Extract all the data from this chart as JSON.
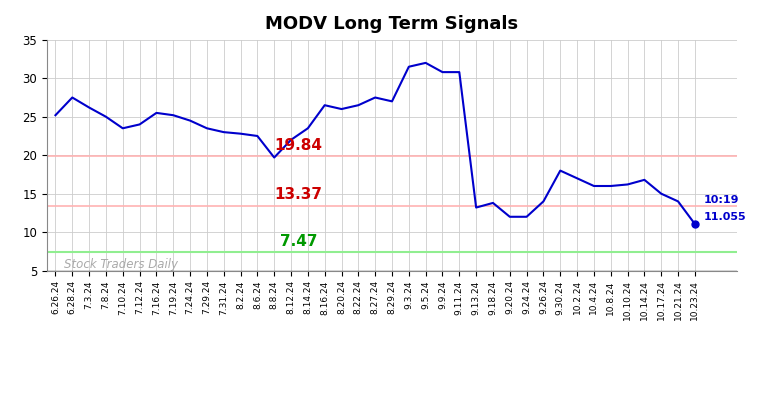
{
  "title": "MODV Long Term Signals",
  "line_color": "#0000cc",
  "hline1_value": 19.84,
  "hline1_color": "#ffb3b3",
  "hline2_value": 13.37,
  "hline2_color": "#ffb3b3",
  "hline3_value": 7.47,
  "hline3_color": "#90ee90",
  "label1_text": "19.84",
  "label1_color": "#cc0000",
  "label2_text": "13.37",
  "label2_color": "#cc0000",
  "label3_text": "7.47",
  "label3_color": "#009900",
  "watermark_text": "Stock Traders Daily",
  "watermark_color": "#aaaaaa",
  "annotation_color": "#0000cc",
  "last_dot_color": "#0000cc",
  "ylim": [
    5,
    35
  ],
  "yticks": [
    5,
    10,
    15,
    20,
    25,
    30,
    35
  ],
  "background_color": "#ffffff",
  "x_dates": [
    "6.26.24",
    "6.28.24",
    "7.3.24",
    "7.8.24",
    "7.10.24",
    "7.12.24",
    "7.16.24",
    "7.19.24",
    "7.24.24",
    "7.29.24",
    "7.31.24",
    "8.2.24",
    "8.6.24",
    "8.8.24",
    "8.12.24",
    "8.14.24",
    "8.16.24",
    "8.20.24",
    "8.22.24",
    "8.27.24",
    "8.29.24",
    "9.3.24",
    "9.5.24",
    "9.9.24",
    "9.11.24",
    "9.13.24",
    "9.18.24",
    "9.20.24",
    "9.24.24",
    "9.26.24",
    "9.30.24",
    "10.2.24",
    "10.4.24",
    "10.8.24",
    "10.10.24",
    "10.14.24",
    "10.17.24",
    "10.21.24",
    "10.23.24"
  ],
  "y_values": [
    25.2,
    27.5,
    26.2,
    25.0,
    23.5,
    24.0,
    25.5,
    25.2,
    24.5,
    23.5,
    23.0,
    22.8,
    22.5,
    19.7,
    22.0,
    23.5,
    26.5,
    26.0,
    26.5,
    27.5,
    27.0,
    31.5,
    32.0,
    30.8,
    30.8,
    13.2,
    13.8,
    12.0,
    12.0,
    14.0,
    18.0,
    17.0,
    16.0,
    16.0,
    16.2,
    16.8,
    15.0,
    14.0,
    11.055
  ]
}
